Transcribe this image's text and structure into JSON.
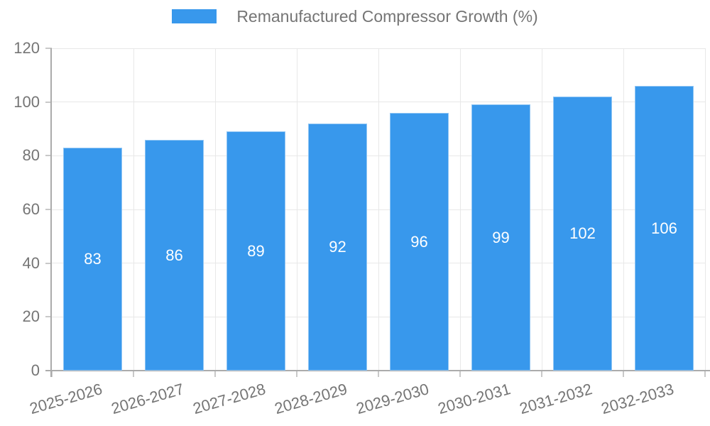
{
  "legend": {
    "label": "Remanufactured Compressor Growth (%)"
  },
  "chart_data": {
    "type": "bar",
    "title": "Remanufactured Compressor Growth (%)",
    "categories": [
      "2025-2026",
      "2026-2027",
      "2027-2028",
      "2028-2029",
      "2029-2030",
      "2030-2031",
      "2031-2032",
      "2032-2033"
    ],
    "values": [
      83,
      86,
      89,
      92,
      96,
      99,
      102,
      106
    ],
    "xlabel": "",
    "ylabel": "",
    "ylim": [
      0,
      120
    ],
    "yticks": [
      0,
      20,
      40,
      60,
      80,
      100,
      120
    ],
    "grid": true,
    "legend_position": "top",
    "bar_labels_inside": true,
    "colors": {
      "bar": "#3898ec",
      "bar_label": "#ffffff",
      "grid": "#e8e8e8",
      "axis": "#ababab",
      "tick": "#c9c9c9",
      "text": "#757575",
      "background": "#ffffff"
    }
  }
}
